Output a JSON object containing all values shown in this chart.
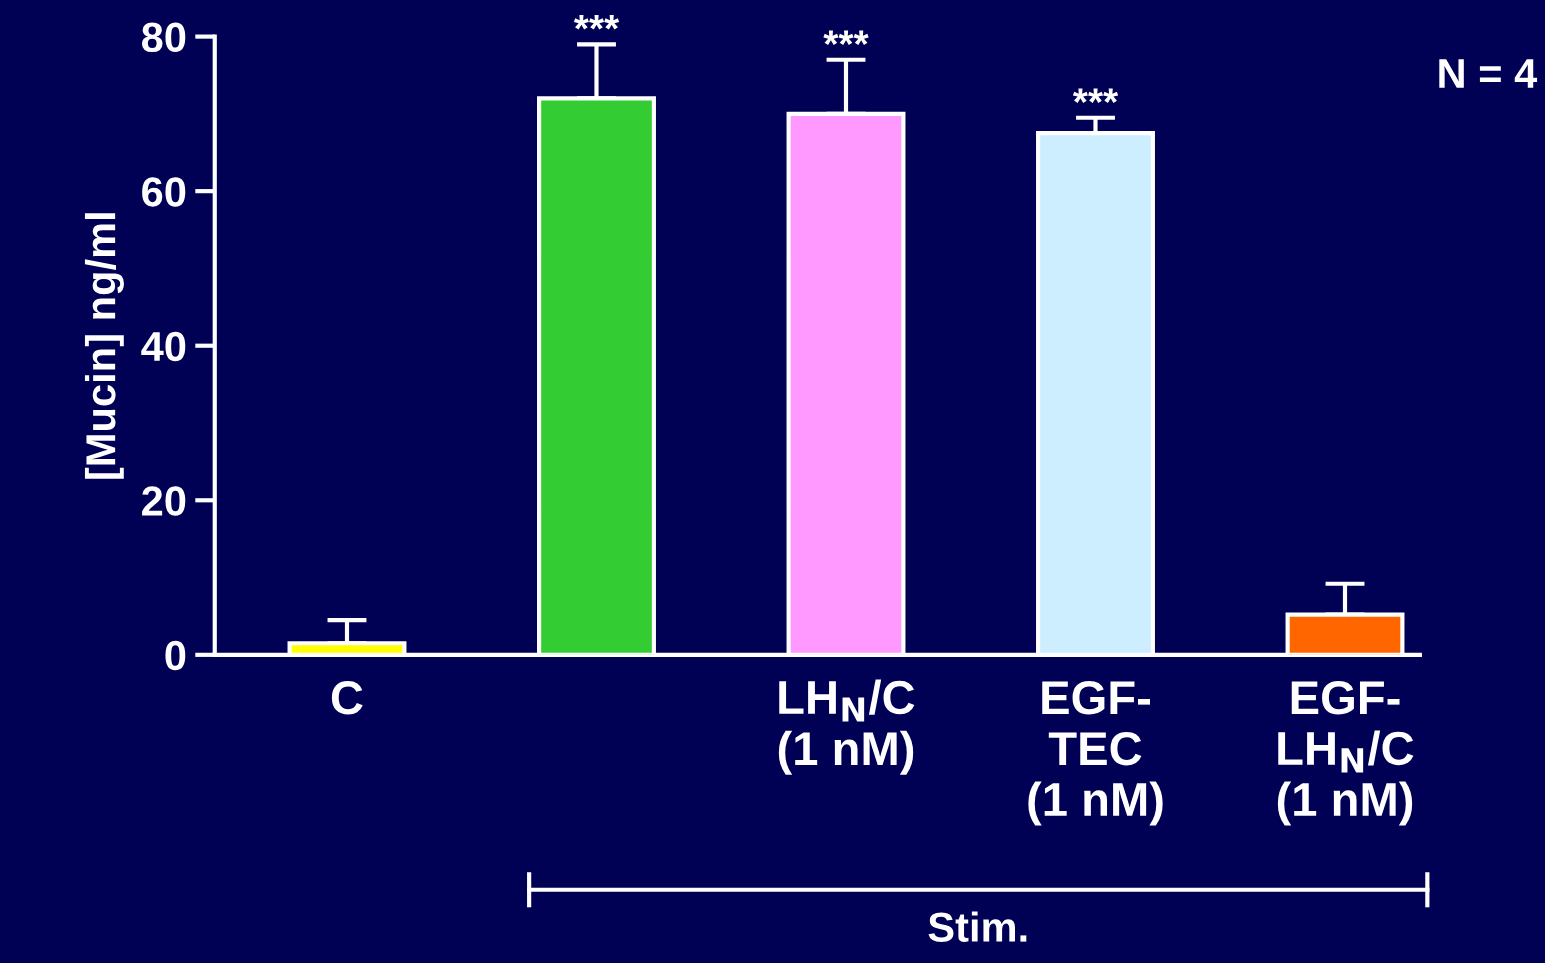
{
  "chart_data": {
    "type": "bar",
    "ylabel": "[Mucin] ng/ml",
    "categories": [
      "C",
      null,
      "LH$_{N}$/C\n(1 nM)",
      "EGF-\nTEC\n(1 nM)",
      "EGF-\nLH$_{N}$/C\n(1 nM)"
    ],
    "values": [
      1.5,
      72,
      70,
      67.5,
      5.2
    ],
    "errors": [
      [
        1.5,
        4.5
      ],
      [
        72,
        79
      ],
      [
        70,
        77
      ],
      [
        67.5,
        69.5
      ],
      [
        5.2,
        9.2
      ]
    ],
    "value_labels": [
      null,
      "***",
      "***",
      "***",
      null
    ],
    "colors": [
      "#ffff00",
      "#33cc33",
      "#ff99ff",
      "#cceeff",
      "#ff6600"
    ],
    "ylim": [
      0,
      80
    ],
    "yticks": [
      0,
      20,
      40,
      60,
      80
    ],
    "grid": false,
    "annotations": [
      "N = 4",
      "Stim."
    ]
  }
}
